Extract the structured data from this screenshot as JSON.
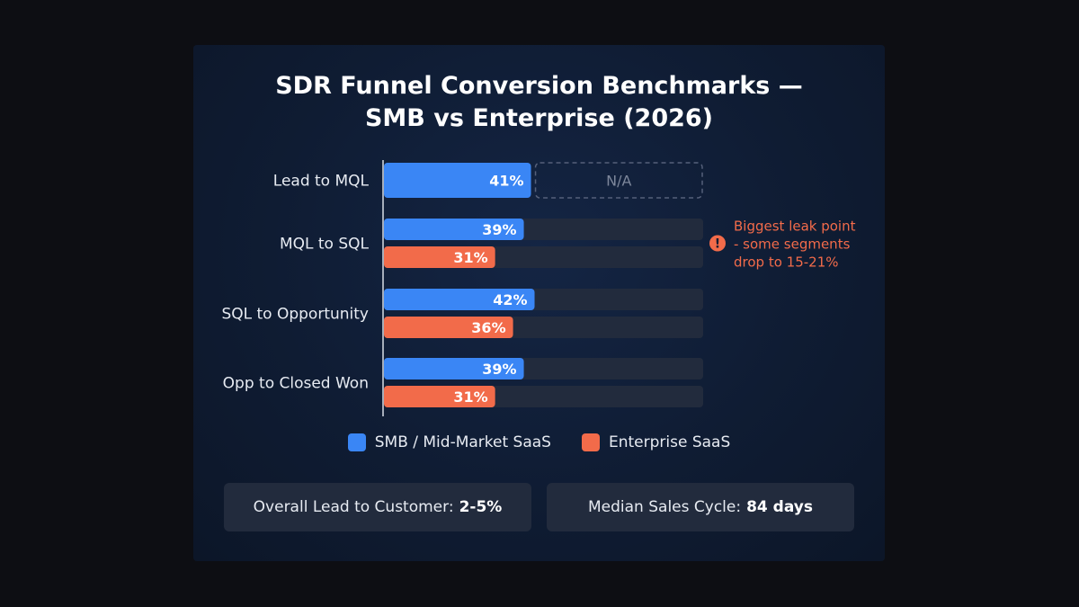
{
  "chart_data": {
    "type": "bar",
    "orientation": "horizontal",
    "title_line1": "SDR Funnel Conversion Benchmarks —",
    "title_line2": "SMB vs Enterprise (2026)",
    "categories": [
      "Lead to MQL",
      "MQL to SQL",
      "SQL to Opportunity",
      "Opp to Closed Won"
    ],
    "xlim": [
      0,
      100
    ],
    "series": [
      {
        "name": "SMB / Mid-Market SaaS",
        "color": "#3a86f5",
        "values": [
          41,
          39,
          42,
          39
        ],
        "labels": [
          "41%",
          "39%",
          "42%",
          "39%"
        ]
      },
      {
        "name": "Enterprise SaaS",
        "color": "#f26b4a",
        "values": [
          null,
          31,
          36,
          31
        ],
        "labels": [
          "N/A",
          "31%",
          "36%",
          "31%"
        ]
      }
    ],
    "annotation": {
      "category": "MQL to SQL",
      "icon": "exclamation-icon",
      "color": "#f26b4a",
      "lines": [
        "Biggest leak point",
        "- some segments",
        "drop to 15-21%"
      ]
    },
    "legend_position": "bottom",
    "grid": false
  },
  "stats": [
    {
      "label": "Overall Lead to Customer:",
      "value": "2-5%"
    },
    {
      "label": "Median Sales Cycle:",
      "value": "84 days"
    }
  ]
}
